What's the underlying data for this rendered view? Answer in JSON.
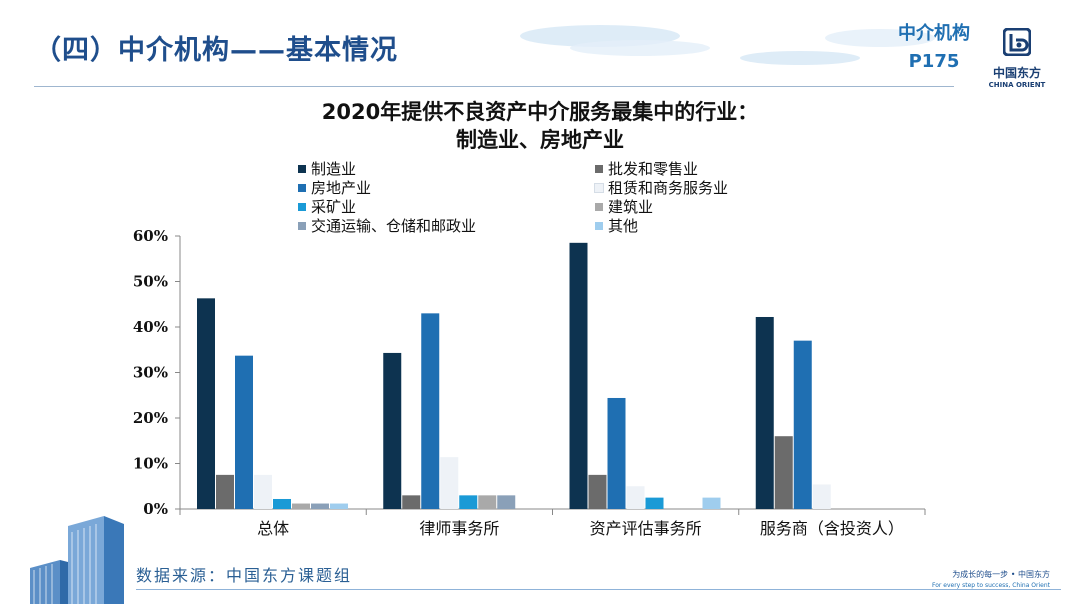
{
  "header": {
    "title": "（四）中介机构——基本情况",
    "tag_line1": "中介机构",
    "tag_line2": "P175",
    "logo_cn": "中国东方",
    "logo_en": "CHINA ORIENT"
  },
  "chart_data": {
    "type": "bar",
    "title_line1": "2020年提供不良资产中介服务最集中的行业：",
    "title_line2": "制造业、房地产业",
    "categories": [
      "总体",
      "律师事务所",
      "资产评估事务所",
      "服务商（含投资人）"
    ],
    "ylim": [
      0,
      60
    ],
    "yticks": [
      0,
      10,
      20,
      30,
      40,
      50,
      60
    ],
    "ytick_labels": [
      "0%",
      "10%",
      "20%",
      "30%",
      "40%",
      "50%",
      "60%"
    ],
    "legend_placement": "top",
    "series": [
      {
        "name": "制造业",
        "color": "#0d3350",
        "values": [
          46.3,
          34.3,
          58.5,
          42.2
        ]
      },
      {
        "name": "批发和零售业",
        "color": "#6b6b6b",
        "values": [
          7.5,
          3.0,
          7.5,
          16.0
        ]
      },
      {
        "name": "房地产业",
        "color": "#1f6fb2",
        "values": [
          33.7,
          43.0,
          24.4,
          37.0
        ]
      },
      {
        "name": "租赁和商务服务业",
        "color": "#eef2f7",
        "values": [
          7.5,
          11.4,
          5.0,
          5.4
        ]
      },
      {
        "name": "采矿业",
        "color": "#1a9ad6",
        "values": [
          2.2,
          3.0,
          2.5,
          0
        ]
      },
      {
        "name": "建筑业",
        "color": "#a9a9a9",
        "values": [
          1.2,
          3.0,
          0,
          0
        ]
      },
      {
        "name": "交通运输、仓储和邮政业",
        "color": "#8aa0b8",
        "values": [
          1.2,
          3.0,
          0,
          0
        ]
      },
      {
        "name": "其他",
        "color": "#9fcdee",
        "values": [
          1.2,
          0,
          2.5,
          0
        ]
      }
    ]
  },
  "footer": {
    "source": "数据来源：中国东方课题组",
    "slogan_cn": "为成长的每一步 • 中国东方",
    "slogan_en": "For every step to success, China Orient"
  }
}
